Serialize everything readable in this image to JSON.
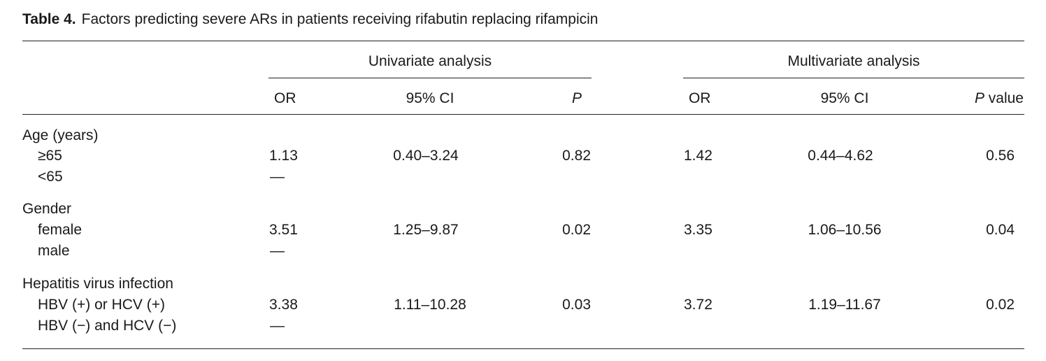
{
  "caption": {
    "label": "Table 4.",
    "text": "Factors predicting severe ARs in patients receiving rifabutin replacing rifampicin"
  },
  "groups": {
    "univariate": "Univariate analysis",
    "multivariate": "Multivariate analysis"
  },
  "columns": {
    "uni_or": "OR",
    "uni_ci": "95% CI",
    "uni_p": "P",
    "multi_or": "OR",
    "multi_ci": "95% CI",
    "multi_p_italic": "P",
    "multi_p_rest": " value"
  },
  "rows": [
    {
      "heading": "Age (years)",
      "a": {
        "label": "≥65",
        "uni_or": "1.13",
        "uni_ci": "0.40–3.24",
        "uni_p": "0.82",
        "multi_or": "1.42",
        "multi_ci": "0.44–4.62",
        "multi_p": "0.56"
      },
      "b": {
        "label": "<65",
        "uni_or": "—"
      }
    },
    {
      "heading": "Gender",
      "a": {
        "label": "female",
        "uni_or": "3.51",
        "uni_ci": "1.25–9.87",
        "uni_p": "0.02",
        "multi_or": "3.35",
        "multi_ci": "1.06–10.56",
        "multi_p": "0.04"
      },
      "b": {
        "label": "male",
        "uni_or": "—"
      }
    },
    {
      "heading": "Hepatitis virus infection",
      "a": {
        "label": "HBV (+) or HCV (+)",
        "uni_or": "3.38",
        "uni_ci": "1.11–10.28",
        "uni_p": "0.03",
        "multi_or": "3.72",
        "multi_ci": "1.19–11.67",
        "multi_p": "0.02"
      },
      "b": {
        "label": "HBV (−) and HCV (−)",
        "uni_or": "—"
      }
    }
  ]
}
